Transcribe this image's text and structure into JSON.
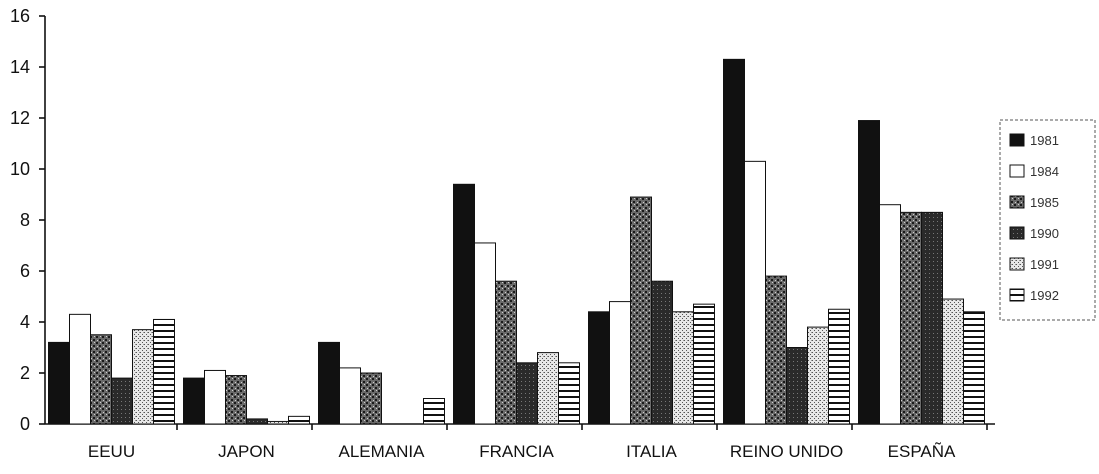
{
  "chart_data": {
    "type": "bar",
    "title": "",
    "xlabel": "",
    "ylabel": "",
    "ylim": [
      0,
      16
    ],
    "yticks": [
      0,
      2,
      4,
      6,
      8,
      10,
      12,
      14,
      16
    ],
    "ytick_labels": [
      "0",
      "2",
      "4",
      "6",
      "8",
      "10",
      "12",
      "14",
      "16"
    ],
    "grid": false,
    "legend_position": "right",
    "categories": [
      "EEUU",
      "JAPON",
      "ALEMANIA",
      "FRANCIA",
      "ITALIA",
      "REINO UNIDO",
      "ESPAÑA"
    ],
    "series": [
      {
        "name": "1981",
        "pattern": "solid",
        "values": [
          3.2,
          1.8,
          3.2,
          9.4,
          4.4,
          14.3,
          11.9
        ]
      },
      {
        "name": "1984",
        "pattern": "white",
        "values": [
          4.3,
          2.1,
          2.2,
          7.1,
          4.8,
          10.3,
          8.6
        ]
      },
      {
        "name": "1985",
        "pattern": "dark-speckle",
        "values": [
          3.5,
          1.9,
          2.0,
          5.6,
          8.9,
          5.8,
          8.3
        ]
      },
      {
        "name": "1990",
        "pattern": "dark",
        "values": [
          1.8,
          0.2,
          0.0,
          2.4,
          5.6,
          3.0,
          8.3
        ]
      },
      {
        "name": "1991",
        "pattern": "light-speckle",
        "values": [
          3.7,
          0.1,
          0.0,
          2.8,
          4.4,
          3.8,
          4.9
        ]
      },
      {
        "name": "1992",
        "pattern": "stripes",
        "values": [
          4.1,
          0.3,
          1.0,
          2.4,
          4.7,
          4.5,
          4.4
        ]
      }
    ]
  },
  "colors": {
    "solid": "#111111",
    "white": "#ffffff",
    "dark": "#3a3a3a",
    "speckle_dark": "#555555",
    "speckle_light": "#bdbdbd"
  }
}
